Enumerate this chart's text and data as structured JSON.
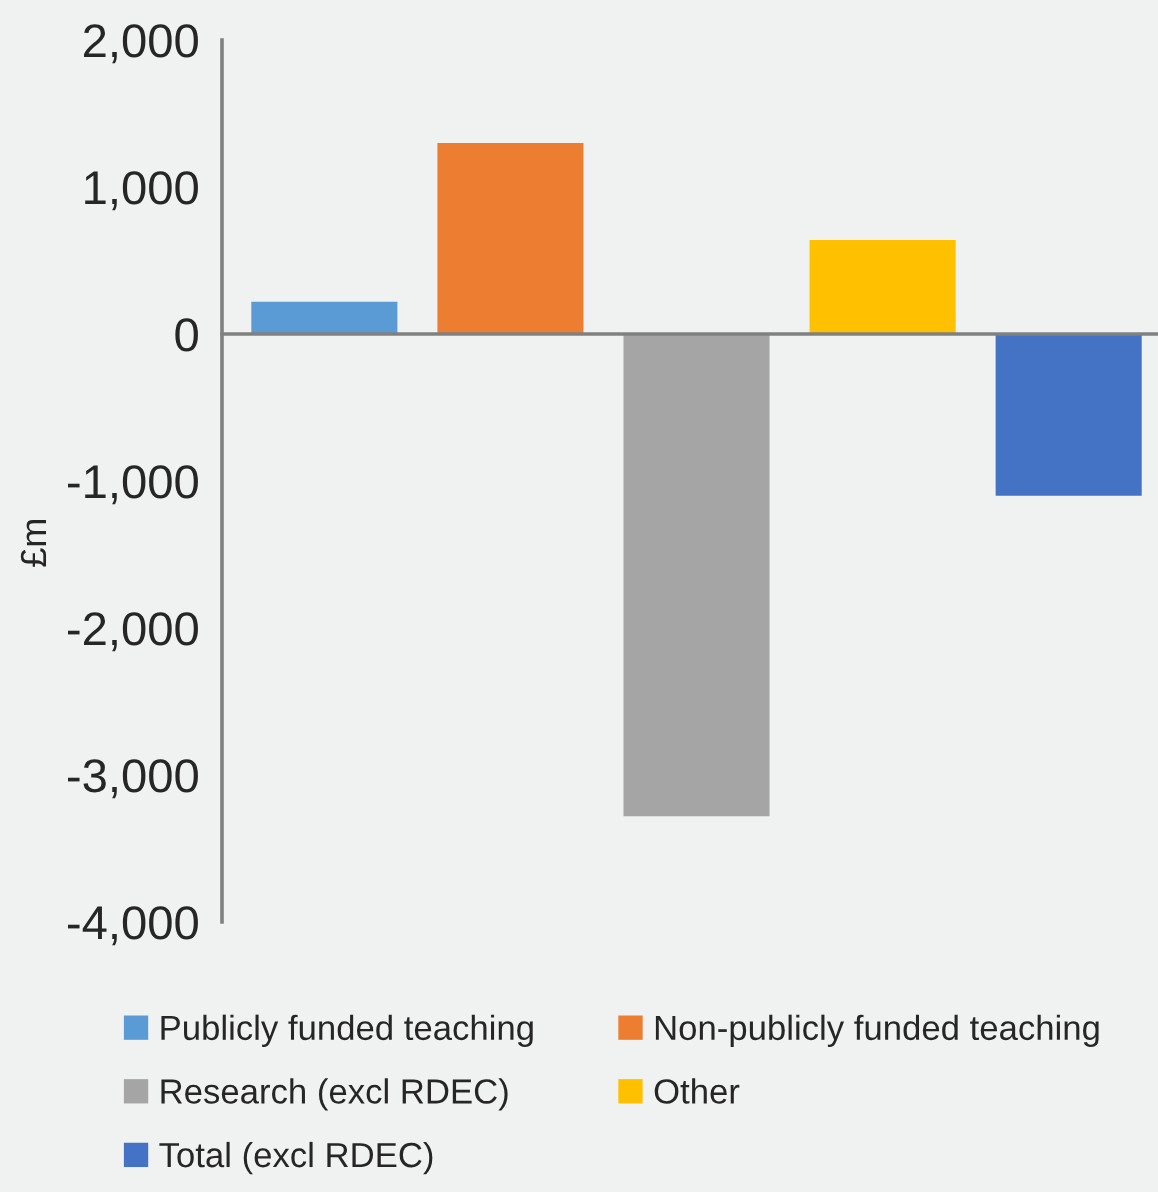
{
  "chart_data": {
    "type": "bar",
    "ylabel": "£m",
    "categories": [
      null
    ],
    "series": [
      {
        "name": "Publicly funded teaching",
        "color": "#5b9bd5",
        "values": [
          220
        ]
      },
      {
        "name": "Non-publicly funded teaching",
        "color": "#ed7d31",
        "values": [
          1300
        ]
      },
      {
        "name": "Research (excl RDEC)",
        "color": "#a5a5a5",
        "values": [
          -3280
        ]
      },
      {
        "name": "Other",
        "color": "#ffc000",
        "values": [
          640
        ]
      },
      {
        "name": "Total (excl RDEC)",
        "color": "#4472c4",
        "values": [
          -1100
        ]
      }
    ],
    "ylim": [
      -4000,
      2000
    ],
    "yticks": [
      {
        "value": 2000,
        "label": "2,000"
      },
      {
        "value": 1000,
        "label": "1,000"
      },
      0,
      {
        "value": -1000,
        "label": "-1,000"
      },
      {
        "value": -2000,
        "label": "-2,000"
      },
      {
        "value": -3000,
        "label": "-3,000"
      },
      {
        "value": -4000,
        "label": "-4,000"
      }
    ],
    "legend": "bottom"
  }
}
